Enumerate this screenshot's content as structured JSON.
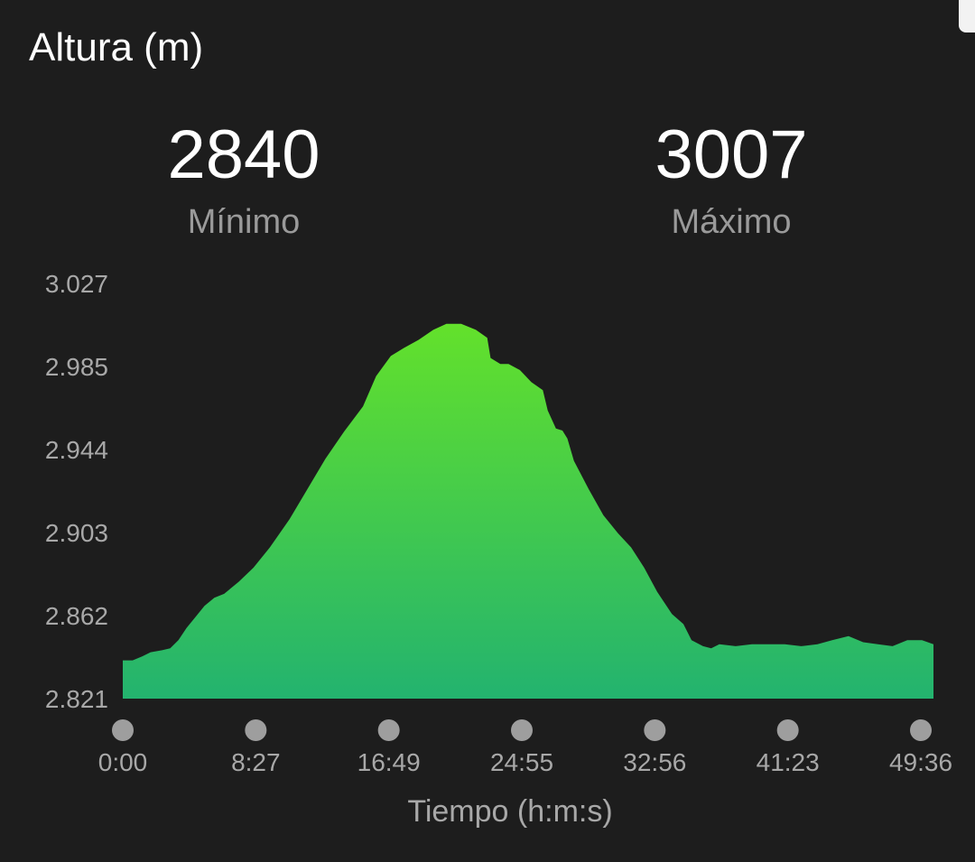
{
  "header": {
    "title": "Altura (m)"
  },
  "stats": {
    "min": {
      "value": "2840",
      "label": "Mínimo"
    },
    "max": {
      "value": "3007",
      "label": "Máximo"
    }
  },
  "colors": {
    "fill_top": "#63e12b",
    "fill_bottom": "#23b36f",
    "background": "#1d1d1d",
    "text_muted": "#a8a8a8"
  },
  "chart_data": {
    "type": "area",
    "title": "Altura (m)",
    "xlabel": "Tiempo (h:m:s)",
    "ylabel": "",
    "x_tick_labels": [
      "0:00",
      "8:27",
      "16:49",
      "24:55",
      "32:56",
      "41:23",
      "49:36"
    ],
    "y_tick_labels": [
      "3.027",
      "2.985",
      "2.944",
      "2.903",
      "2.862",
      "2.821"
    ],
    "ylim": [
      2821,
      3027
    ],
    "xlim_minutes": [
      0,
      49.6
    ],
    "grid": false,
    "legend": "none",
    "series": [
      {
        "x_minutes": [
          0,
          0.6,
          1.2,
          1.7,
          2.4,
          2.9,
          3.4,
          3.9,
          4.5,
          5.0,
          5.6,
          6.2,
          7.1,
          8.0,
          9.0,
          10.2,
          11.3,
          12.4,
          13.5,
          14.7,
          15.5,
          16.4,
          17.2,
          18.1,
          19.0,
          19.8,
          20.7,
          21.6,
          22.3,
          22.5,
          23.1,
          23.6,
          24.3,
          25.0,
          25.7,
          26.0,
          26.5,
          26.9,
          27.2,
          27.6,
          28.5,
          29.4,
          30.3,
          31.1,
          31.9,
          32.7,
          33.6,
          34.3,
          34.8,
          35.5,
          36.0,
          36.5,
          37.5,
          38.5,
          39.5,
          40.5,
          41.5,
          42.5,
          43.4,
          44.4,
          45.3,
          46.2,
          47.1,
          48.0,
          48.9,
          49.6
        ],
        "y_m": [
          2840,
          2840,
          2842,
          2844,
          2845,
          2846,
          2850,
          2856,
          2862,
          2867,
          2871,
          2873,
          2879,
          2886,
          2896,
          2910,
          2925,
          2940,
          2953,
          2966,
          2981,
          2991,
          2995,
          2999,
          3004,
          3007,
          3007,
          3004,
          3000,
          2990,
          2987,
          2987,
          2984,
          2978,
          2974,
          2964,
          2955,
          2954,
          2950,
          2939,
          2925,
          2912,
          2903,
          2896,
          2886,
          2874,
          2863,
          2858,
          2850,
          2847,
          2846,
          2848,
          2847,
          2848,
          2848,
          2848,
          2847,
          2848,
          2850,
          2852,
          2849,
          2848,
          2847,
          2850,
          2850,
          2848
        ]
      }
    ]
  }
}
